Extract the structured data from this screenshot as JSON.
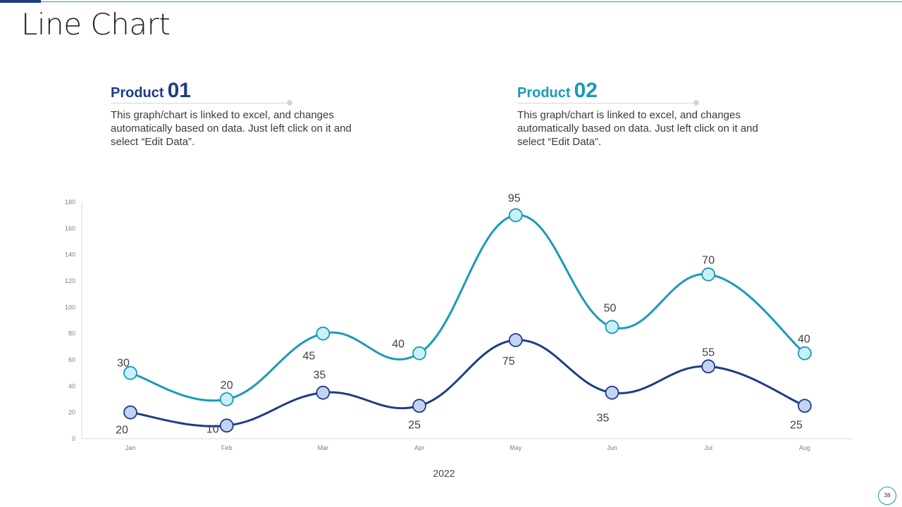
{
  "page": {
    "title": "Line Chart",
    "page_number": "38"
  },
  "products": [
    {
      "label": "Product",
      "number": "01",
      "description": "This graph/chart is linked to excel, and changes automatically based on data. Just left click on it and select “Edit Data”.",
      "color": "#1f3c88"
    },
    {
      "label": "Product",
      "number": "02",
      "description": "This graph/chart is linked to excel, and changes automatically based on data. Just left click on it and select “Edit Data”.",
      "color": "#1a9bb6"
    }
  ],
  "chart_data": {
    "type": "line",
    "title": "",
    "xlabel": "2022",
    "ylabel": "",
    "ylim": [
      0,
      180
    ],
    "yticks": [
      0,
      20,
      40,
      60,
      80,
      100,
      120,
      140,
      160,
      180
    ],
    "categories": [
      "Jan",
      "Feb",
      "Mar",
      "Apr",
      "May",
      "Jun",
      "Jul",
      "Aug"
    ],
    "smooth": true,
    "stacked": true,
    "series": [
      {
        "name": "Product 01",
        "values": [
          20,
          10,
          35,
          25,
          75,
          35,
          55,
          25
        ],
        "color": "#1f3c88",
        "marker_fill": "#c5d3f2"
      },
      {
        "name": "Product 02",
        "values": [
          30,
          20,
          45,
          40,
          95,
          50,
          70,
          40
        ],
        "color": "#1a9bb6",
        "marker_fill": "#c7f0f8"
      }
    ]
  }
}
